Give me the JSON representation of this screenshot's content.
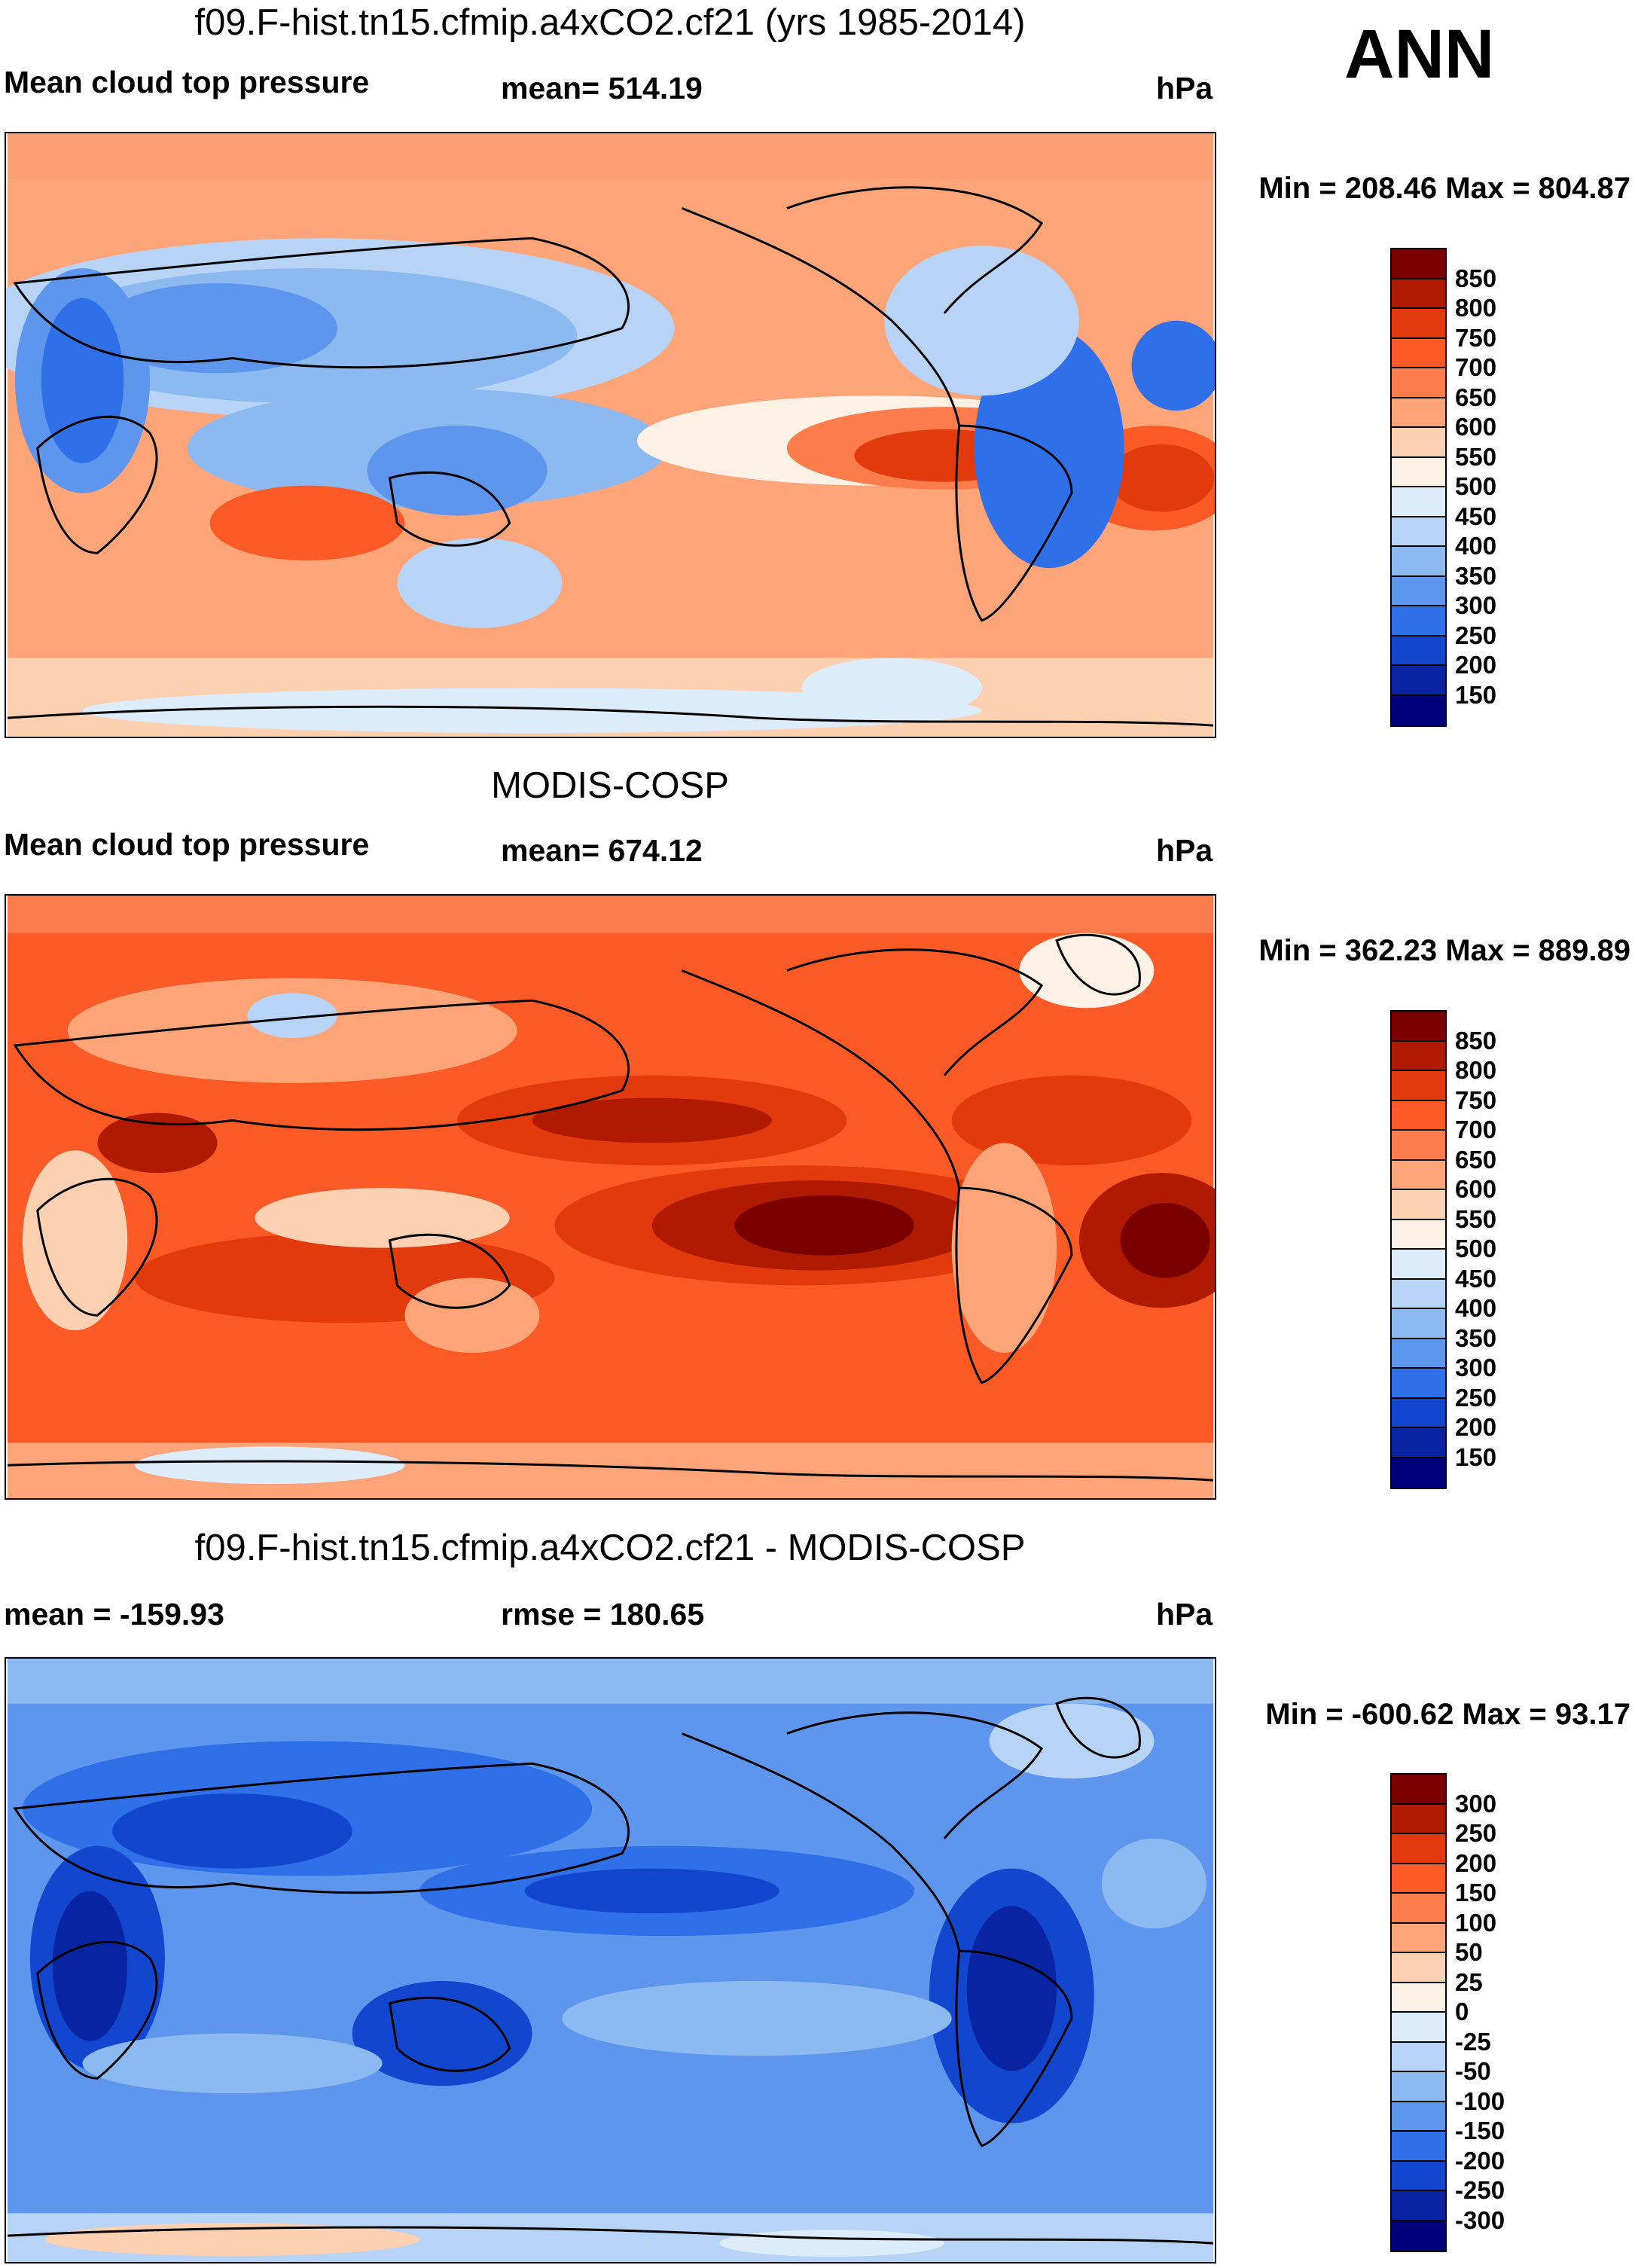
{
  "season": "ANN",
  "panels": [
    {
      "id": "test",
      "title": "f09.F-hist.tn15.cfmip.a4xCO2.cf21 (yrs 1985-2014)",
      "left_text": "Mean cloud top pressure",
      "center_text": "mean= 514.19",
      "units": "hPa",
      "minmax": "Min = 208.46 Max = 804.87",
      "colorbar": {
        "labels": [
          "850",
          "800",
          "750",
          "700",
          "650",
          "600",
          "550",
          "500",
          "450",
          "400",
          "350",
          "300",
          "250",
          "200",
          "150"
        ],
        "colors": [
          "#7a0000",
          "#b01b00",
          "#e23a0d",
          "#fb5a26",
          "#fc7d4b",
          "#fda479",
          "#fed0b2",
          "#fdf0e4",
          "#ddecfb",
          "#b7d4f6",
          "#8db9f1",
          "#5d96ec",
          "#2f6fe8",
          "#1346cf",
          "#0924a3",
          "#00007a"
        ]
      }
    },
    {
      "id": "obs",
      "title": "MODIS-COSP",
      "left_text": "Mean cloud top pressure",
      "center_text": "mean= 674.12",
      "units": "hPa",
      "minmax": "Min = 362.23 Max = 889.89",
      "colorbar": {
        "labels": [
          "850",
          "800",
          "750",
          "700",
          "650",
          "600",
          "550",
          "500",
          "450",
          "400",
          "350",
          "300",
          "250",
          "200",
          "150"
        ],
        "colors": [
          "#7a0000",
          "#b01b00",
          "#e23a0d",
          "#fb5a26",
          "#fc7d4b",
          "#fda479",
          "#fed0b2",
          "#fdf0e4",
          "#ddecfb",
          "#b7d4f6",
          "#8db9f1",
          "#5d96ec",
          "#2f6fe8",
          "#1346cf",
          "#0924a3",
          "#00007a"
        ]
      }
    },
    {
      "id": "diff",
      "title": "f09.F-hist.tn15.cfmip.a4xCO2.cf21 - MODIS-COSP",
      "left_text": "mean = -159.93",
      "center_text": "rmse = 180.65",
      "units": "hPa",
      "minmax": "Min = -600.62 Max =  93.17",
      "colorbar": {
        "labels": [
          "300",
          "250",
          "200",
          "150",
          "100",
          "50",
          "25",
          "0",
          "-25",
          "-50",
          "-100",
          "-150",
          "-200",
          "-250",
          "-300"
        ],
        "colors": [
          "#7a0000",
          "#b01b00",
          "#e23a0d",
          "#fb5a26",
          "#fc7d4b",
          "#fda479",
          "#fed0b2",
          "#fdf0e4",
          "#ddecfb",
          "#b7d4f6",
          "#8db9f1",
          "#5d96ec",
          "#2f6fe8",
          "#1346cf",
          "#0924a3",
          "#00007a"
        ]
      }
    }
  ]
}
